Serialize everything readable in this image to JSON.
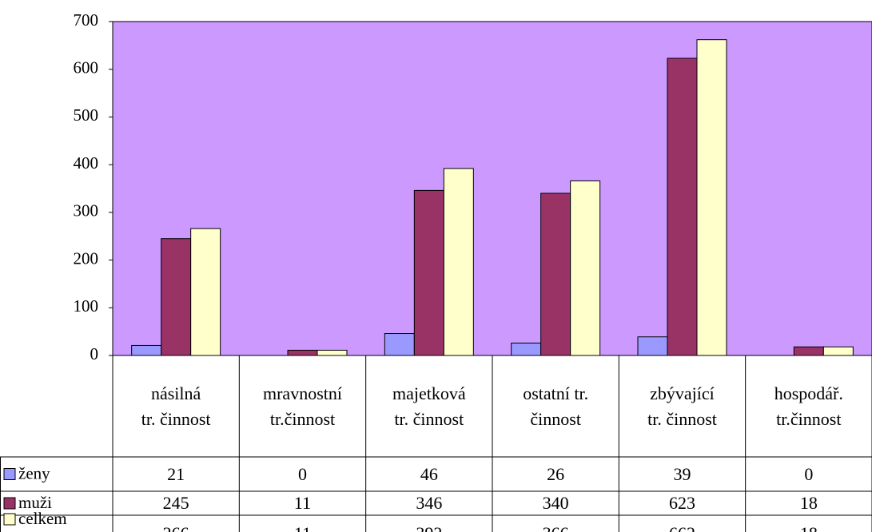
{
  "chart_data": {
    "type": "bar",
    "categories": [
      "násilná\ntr. činnost",
      "mravnostní\ntr.činnost",
      "majetková\ntr. činnost",
      "ostatní tr.\nčinnost",
      "zbývající\ntr. činnost",
      "hospodář.\ntr.činnost"
    ],
    "series": [
      {
        "name": "ženy",
        "color": "#9999ff",
        "values": [
          21,
          0,
          46,
          26,
          39,
          0
        ]
      },
      {
        "name": "muži",
        "color": "#993366",
        "values": [
          245,
          11,
          346,
          340,
          623,
          18
        ]
      },
      {
        "name": "celkem",
        "color": "#ffffcc",
        "values": [
          266,
          11,
          392,
          366,
          662,
          18
        ]
      }
    ],
    "ylim": [
      0,
      700
    ],
    "yticks": [
      0,
      100,
      200,
      300,
      400,
      500,
      600,
      700
    ],
    "plot_background": "#cc99ff",
    "grid": false,
    "data_table": true
  }
}
